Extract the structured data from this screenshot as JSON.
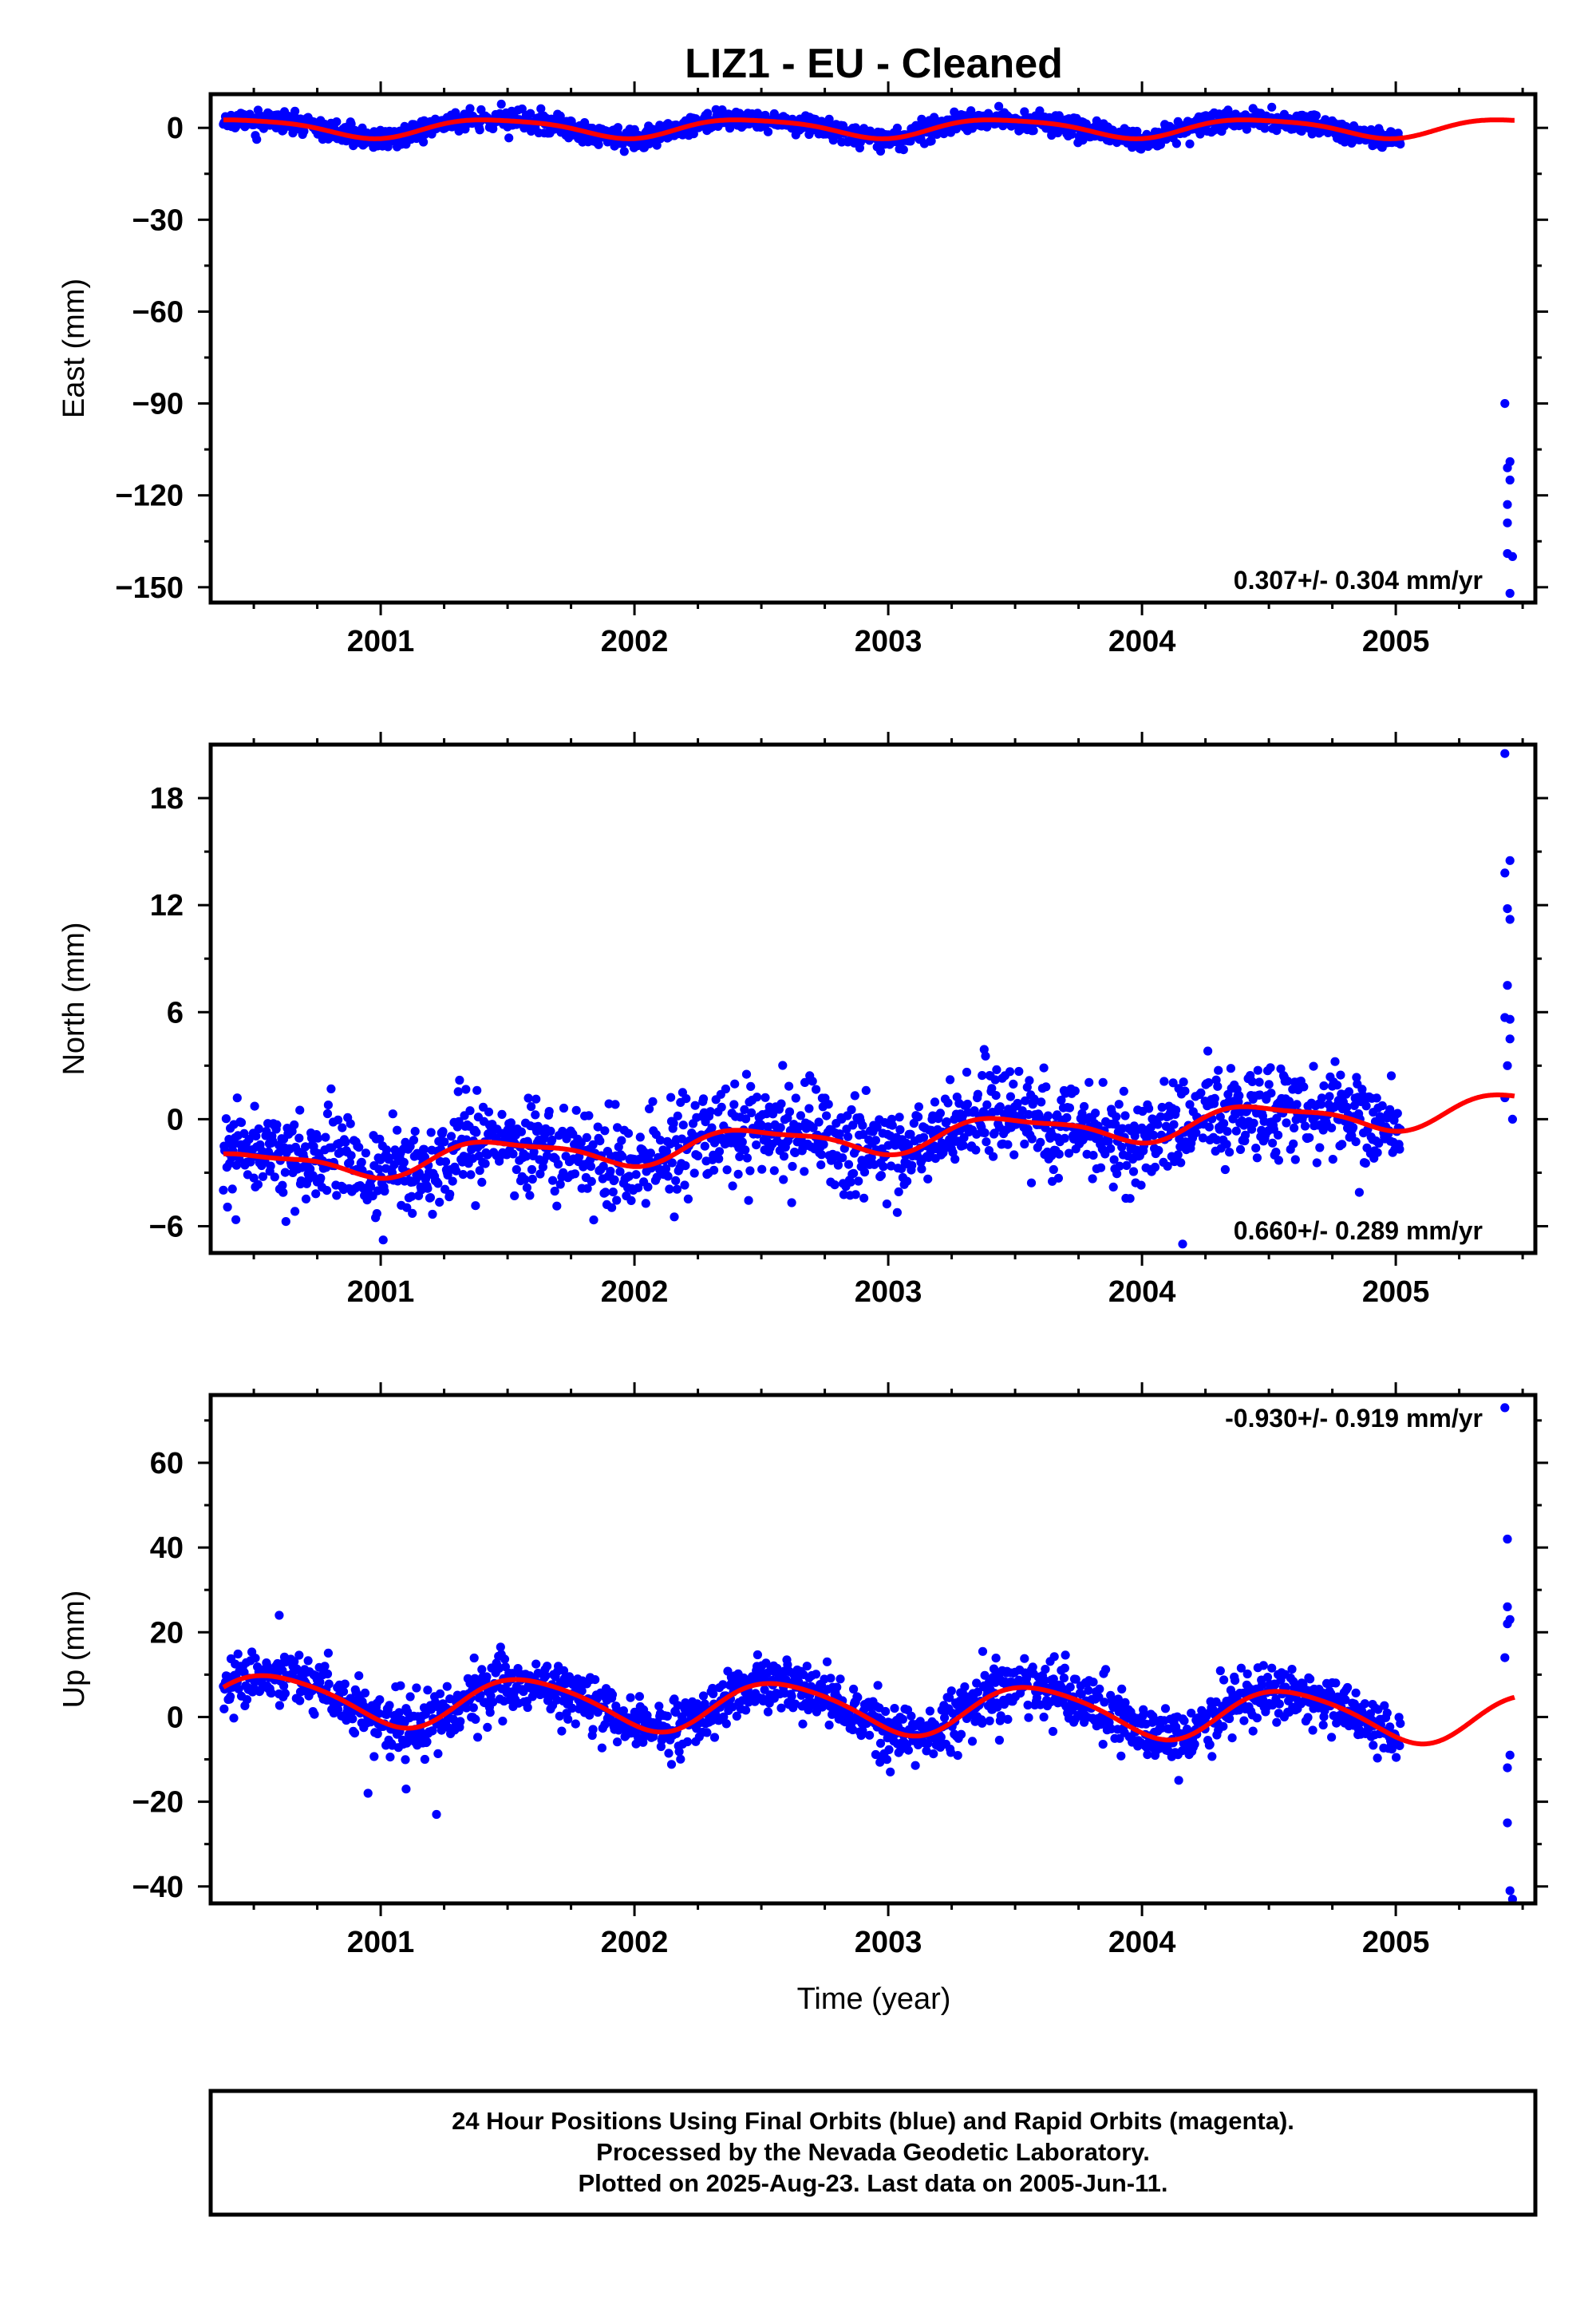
{
  "title": "LIZ1  - EU - Cleaned",
  "xlabel": "Time (year)",
  "footer": {
    "line1": "24 Hour Positions Using Final Orbits (blue) and Rapid Orbits (magenta).",
    "line2": "Processed by the Nevada Geodetic Laboratory.",
    "line3": "Plotted on 2025-Aug-23. Last data on 2005-Jun-11."
  },
  "colors": {
    "points": "#0000ff",
    "model": "#ff0000",
    "frame": "#000000"
  },
  "chart_data": [
    {
      "type": "scatter",
      "component": "east",
      "ylabel": "East (mm)",
      "rate_text": "0.307+/- 0.304 mm/yr",
      "rate_position": "bottom-right",
      "xlim": [
        2000.33,
        2005.55
      ],
      "ylim": [
        -155,
        11
      ],
      "yticks": [
        0,
        -30,
        -60,
        -90,
        -120,
        -150
      ],
      "yticks_minor": [
        -15,
        -45,
        -75,
        -105,
        -135
      ],
      "xticks": [
        2001,
        2002,
        2003,
        2004,
        2005
      ],
      "model": {
        "mean": 0,
        "annual_amp": 3.0,
        "annual_phase_year": 2000.46,
        "semiannual_amp": 0.6,
        "semiannual_phase_year": 2000.25,
        "end_year": 2005.47
      },
      "scatter": {
        "noise_sd": 1.6,
        "seed": 11
      },
      "outliers": [
        {
          "x": 2005.43,
          "y": -90
        },
        {
          "x": 2005.44,
          "y": -111
        },
        {
          "x": 2005.45,
          "y": -109
        },
        {
          "x": 2005.44,
          "y": -123
        },
        {
          "x": 2005.45,
          "y": -115
        },
        {
          "x": 2005.44,
          "y": -129
        },
        {
          "x": 2005.44,
          "y": -139
        },
        {
          "x": 2005.46,
          "y": -140
        },
        {
          "x": 2005.45,
          "y": -152
        }
      ]
    },
    {
      "type": "scatter",
      "component": "north",
      "ylabel": "North (mm)",
      "rate_text": "0.660+/- 0.289 mm/yr",
      "rate_position": "bottom-right",
      "xlim": [
        2000.33,
        2005.55
      ],
      "ylim": [
        -7.5,
        21
      ],
      "yticks": [
        18,
        12,
        6,
        0,
        -6
      ],
      "yticks_minor": [
        15,
        9,
        3,
        -3
      ],
      "xticks": [
        2001,
        2002,
        2003,
        2004,
        2005
      ],
      "model": {
        "mean": -1.0,
        "rate": 0.66,
        "annual_amp": 0.8,
        "annual_phase_year": 2000.48,
        "semiannual_amp": 0.25,
        "semiannual_phase_year": 2000.3,
        "end_year": 2005.47
      },
      "scatter": {
        "noise_sd": 1.3,
        "seed": 23
      },
      "outliers": [
        {
          "x": 2005.43,
          "y": 20.5
        },
        {
          "x": 2005.45,
          "y": 14.5
        },
        {
          "x": 2005.43,
          "y": 13.8
        },
        {
          "x": 2005.44,
          "y": 11.8
        },
        {
          "x": 2005.45,
          "y": 11.2
        },
        {
          "x": 2005.44,
          "y": 7.5
        },
        {
          "x": 2005.43,
          "y": 5.7
        },
        {
          "x": 2005.45,
          "y": 5.6
        },
        {
          "x": 2005.45,
          "y": 4.5
        },
        {
          "x": 2005.44,
          "y": 3.0
        },
        {
          "x": 2005.43,
          "y": 1.2
        },
        {
          "x": 2005.46,
          "y": 0.0
        },
        {
          "x": 2004.16,
          "y": -7.0
        }
      ]
    },
    {
      "type": "scatter",
      "component": "up",
      "ylabel": "Up (mm)",
      "rate_text": "-0.930+/- 0.919 mm/yr",
      "rate_position": "top-right",
      "xlim": [
        2000.33,
        2005.55
      ],
      "ylim": [
        -44,
        76
      ],
      "yticks": [
        60,
        40,
        20,
        0,
        -20,
        -40
      ],
      "yticks_minor": [
        70,
        50,
        30,
        10,
        -10,
        -30
      ],
      "xticks": [
        2001,
        2002,
        2003,
        2004,
        2005
      ],
      "model": {
        "mean": 2.0,
        "rate": -0.93,
        "annual_amp": 5.8,
        "annual_phase_year": 2000.58,
        "semiannual_amp": 0.8,
        "semiannual_phase_year": 2000.4,
        "end_year": 2005.47
      },
      "scatter": {
        "noise_sd": 3.4,
        "seed": 37
      },
      "outliers": [
        {
          "x": 2005.43,
          "y": 73
        },
        {
          "x": 2005.44,
          "y": 42
        },
        {
          "x": 2005.44,
          "y": 26
        },
        {
          "x": 2005.45,
          "y": 23
        },
        {
          "x": 2005.44,
          "y": 22
        },
        {
          "x": 2005.43,
          "y": 14
        },
        {
          "x": 2005.45,
          "y": -9
        },
        {
          "x": 2005.44,
          "y": -12
        },
        {
          "x": 2005.44,
          "y": -25
        },
        {
          "x": 2005.45,
          "y": -41
        },
        {
          "x": 2005.46,
          "y": -43
        },
        {
          "x": 2000.95,
          "y": -18
        },
        {
          "x": 2001.1,
          "y": -17
        },
        {
          "x": 2001.22,
          "y": -23
        },
        {
          "x": 2000.6,
          "y": 24
        }
      ]
    }
  ]
}
